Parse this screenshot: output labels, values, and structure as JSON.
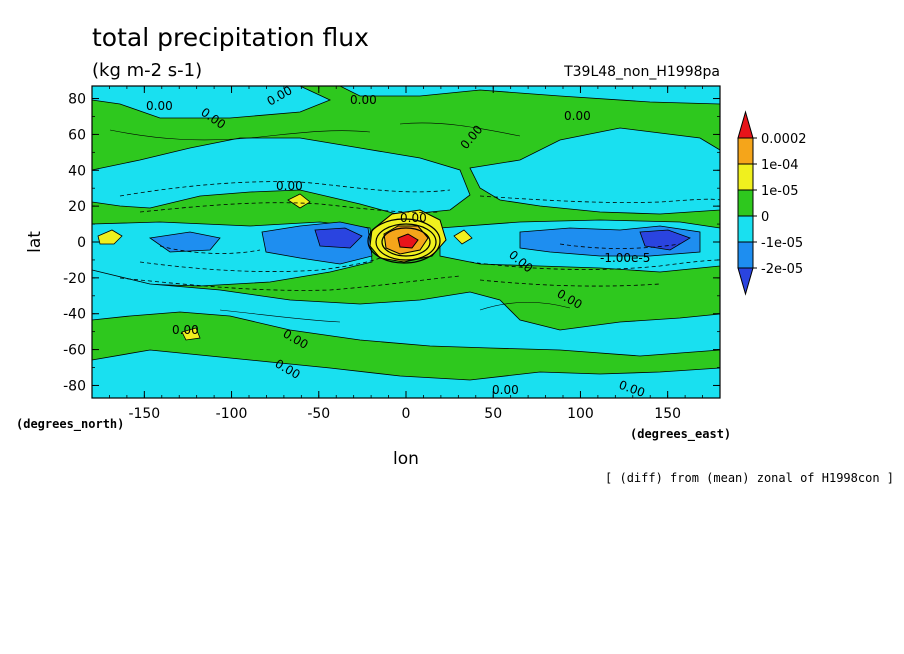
{
  "chart_data": {
    "type": "heatmap",
    "title": "total precipitation flux",
    "units": "(kg m-2 s-1)",
    "experiment": "T39L48_non_H1998pa",
    "xlabel": "lon",
    "ylabel": "lat",
    "x_unit_label": "(degrees_east)",
    "y_unit_label": "(degrees_north)",
    "note": "[ (diff) from (mean) zonal of H1998con ]",
    "xlim": [
      -180,
      180
    ],
    "ylim": [
      -87,
      87
    ],
    "x_ticks": [
      -150,
      -100,
      -50,
      0,
      50,
      100,
      150
    ],
    "y_ticks": [
      80,
      60,
      40,
      20,
      0,
      -20,
      -40,
      -60,
      -80
    ],
    "x_tick_labels": [
      "-150",
      "-100",
      "-50",
      "0",
      "50",
      "100",
      "150"
    ],
    "y_tick_labels": [
      "80",
      "60",
      "40",
      "20",
      "0",
      "-20",
      "-40",
      "-60",
      "-80"
    ],
    "colorbar": {
      "labels": [
        "0.0002",
        "1e-04",
        "1e-05",
        "0",
        "-1e-05",
        "-2e-05"
      ],
      "colors": [
        "#e8141a",
        "#f5a51a",
        "#f0f01e",
        "#2ec81e",
        "#19e0f0",
        "#1e8ef0",
        "#2a44e0"
      ]
    },
    "contour_labels": [
      "0.00",
      "0.00",
      "0.00",
      "0.00",
      "0.00",
      "0.00",
      "0.00",
      "0.00",
      "0.00",
      "0.00",
      "0.00",
      "0.00",
      "0.00",
      "0.00",
      "-1.00e-5"
    ],
    "features": [
      {
        "lon": 2,
        "lat": 0,
        "value": 0.0002
      },
      {
        "lon": -170,
        "lat": 2,
        "value": 4e-05
      },
      {
        "lon": 30,
        "lat": 3,
        "value": 3e-05
      },
      {
        "lon": -62,
        "lat": 20,
        "value": 2e-05
      },
      {
        "lon": -35,
        "lat": 0,
        "value": -2e-05
      },
      {
        "lon": 80,
        "lat": 0,
        "value": -2e-05
      },
      {
        "lon": 150,
        "lat": 0,
        "value": -2e-05
      },
      {
        "lon": -115,
        "lat": -55,
        "value": 1e-05
      }
    ]
  }
}
